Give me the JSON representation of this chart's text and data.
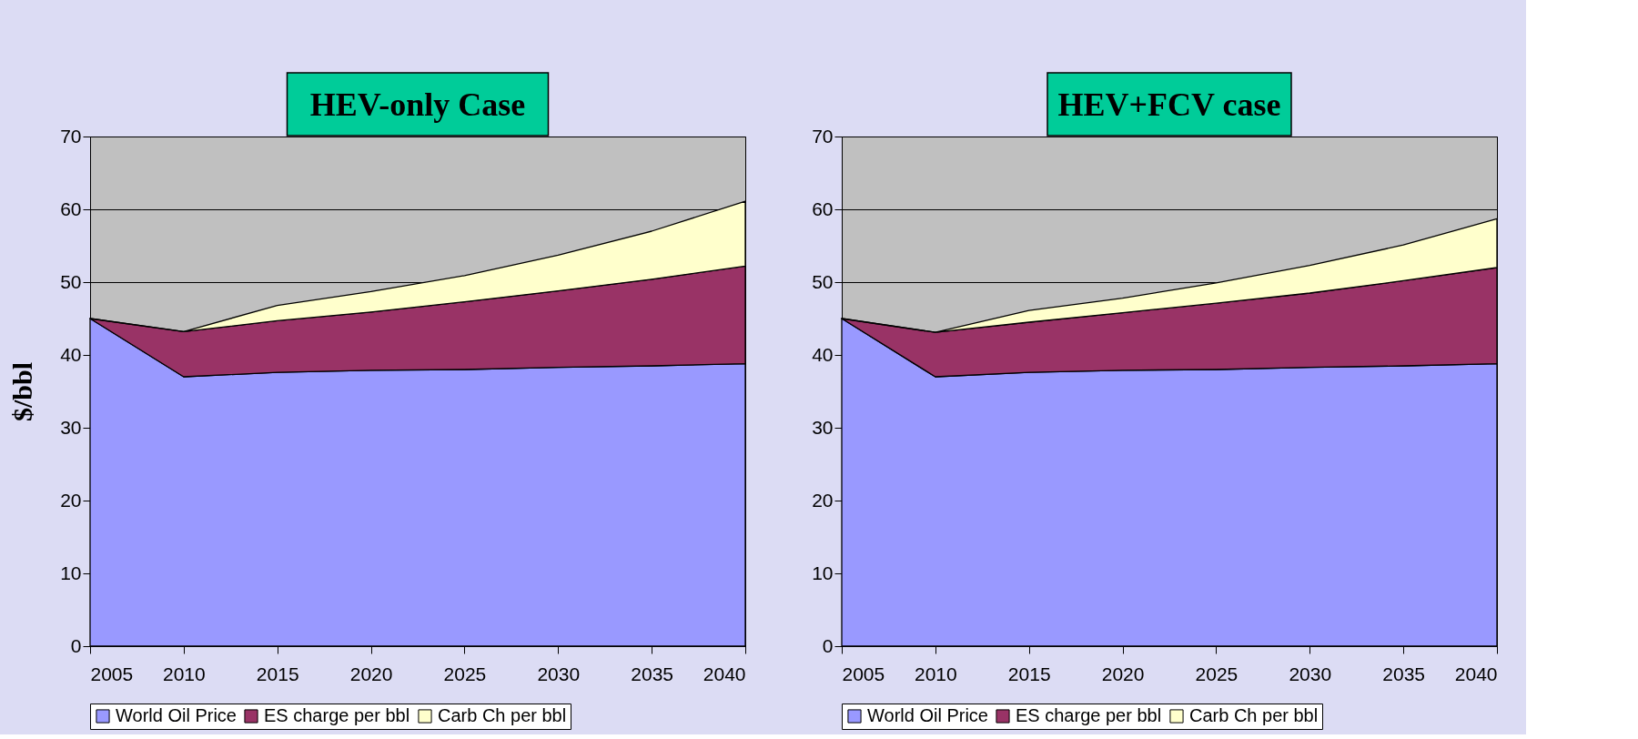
{
  "chart_data": [
    {
      "type": "area",
      "title": "HEV-only Case",
      "ylabel": "$/bbl",
      "stacked": true,
      "x": [
        2005,
        2010,
        2015,
        2020,
        2025,
        2030,
        2035,
        2040
      ],
      "series": [
        {
          "name": "World Oil Price",
          "color": "#9999ff",
          "values": [
            45,
            37.0,
            37.6,
            37.9,
            38.0,
            38.3,
            38.5,
            38.8
          ]
        },
        {
          "name": "ES charge per bbl",
          "color": "#993366",
          "values": [
            0,
            6.2,
            7.1,
            8.0,
            9.3,
            10.5,
            11.9,
            13.4
          ]
        },
        {
          "name": "Carb Ch per bbl",
          "color": "#ffffcc",
          "values": [
            0,
            0,
            2.1,
            2.8,
            3.6,
            4.9,
            6.6,
            8.9
          ]
        }
      ],
      "xlim": [
        2005,
        2040
      ],
      "xticks": [
        2005,
        2010,
        2015,
        2020,
        2025,
        2030,
        2035,
        2040
      ],
      "ylim": [
        0,
        70
      ],
      "yticks": [
        0,
        10,
        20,
        30,
        40,
        50,
        60,
        70
      ],
      "grid": "y",
      "legend": "bottom"
    },
    {
      "type": "area",
      "title": "HEV+FCV case",
      "stacked": true,
      "x": [
        2005,
        2010,
        2015,
        2020,
        2025,
        2030,
        2035,
        2040
      ],
      "series": [
        {
          "name": "World Oil Price",
          "color": "#9999ff",
          "values": [
            45,
            37.0,
            37.6,
            37.9,
            38.0,
            38.3,
            38.5,
            38.8
          ]
        },
        {
          "name": "ES charge per bbl",
          "color": "#993366",
          "values": [
            0,
            6.1,
            6.9,
            7.9,
            9.1,
            10.2,
            11.7,
            13.2
          ]
        },
        {
          "name": "Carb Ch per bbl",
          "color": "#ffffcc",
          "values": [
            0,
            0,
            1.6,
            2.0,
            2.8,
            3.8,
            4.9,
            6.7
          ]
        }
      ],
      "xlim": [
        2005,
        2040
      ],
      "xticks": [
        2005,
        2010,
        2015,
        2020,
        2025,
        2030,
        2035,
        2040
      ],
      "ylim": [
        0,
        70
      ],
      "yticks": [
        0,
        10,
        20,
        30,
        40,
        50,
        60,
        70
      ],
      "grid": "y",
      "legend": "bottom"
    }
  ]
}
